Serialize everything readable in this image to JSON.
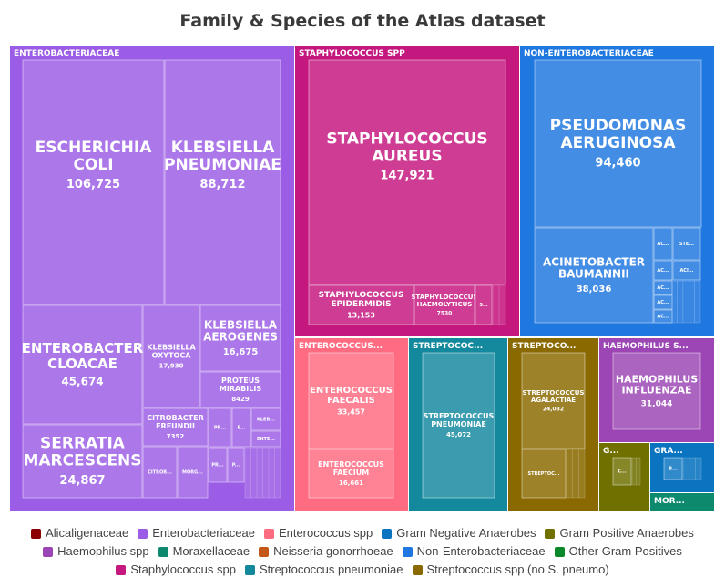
{
  "title": "Family & Species of the Atlas dataset",
  "chart_data": {
    "type": "treemap",
    "title": "Family & Species of the Atlas dataset",
    "groups": [
      {
        "name": "Enterobacteriaceae",
        "label": "ENTEROBACTERIACEAE",
        "color": "#9b5de5",
        "children": [
          {
            "name": "ESCHERICHIA COLI",
            "value": 106725,
            "value_label": "106,725"
          },
          {
            "name": "KLEBSIELLA PNEUMONIAE",
            "value": 88712,
            "value_label": "88,712"
          },
          {
            "name": "ENTEROBACTER CLOACAE",
            "value": 45674,
            "value_label": "45,674"
          },
          {
            "name": "SERRATIA MARCESCENS",
            "value": 24867,
            "value_label": "24,867"
          },
          {
            "name": "KLEBSIELLA OXYTOCA",
            "value": 17930,
            "value_label": "17,930"
          },
          {
            "name": "KLEBSIELLA AEROGENES",
            "value": 16675,
            "value_label": "16,675"
          },
          {
            "name": "PROTEUS MIRABILIS",
            "value": 8429,
            "value_label": "8429"
          },
          {
            "name": "CITROBACTER FREUNDII",
            "value": 7352,
            "value_label": "7352"
          },
          {
            "name": "CITROB...",
            "value": null,
            "value_label": ""
          },
          {
            "name": "MORG...",
            "value": null,
            "value_label": ""
          },
          {
            "name": "PR...",
            "value": null,
            "value_label": ""
          },
          {
            "name": "E...",
            "value": null,
            "value_label": ""
          },
          {
            "name": "KLEB...",
            "value": null,
            "value_label": ""
          },
          {
            "name": "ENTE...",
            "value": null,
            "value_label": ""
          },
          {
            "name": "PR...",
            "value": null,
            "value_label": ""
          },
          {
            "name": "P...",
            "value": null,
            "value_label": ""
          }
        ]
      },
      {
        "name": "Staphylococcus spp",
        "label": "STAPHYLOCOCCUS SPP",
        "color": "#c5187f",
        "children": [
          {
            "name": "STAPHYLOCOCCUS AUREUS",
            "value": 147921,
            "value_label": "147,921"
          },
          {
            "name": "STAPHYLOCOCCUS EPIDERMIDIS",
            "value": 13153,
            "value_label": "13,153"
          },
          {
            "name": "STAPHYLOCOCCUS HAEMOLYTICUS",
            "value": 7530,
            "value_label": "7530"
          },
          {
            "name": "S...",
            "value": null,
            "value_label": ""
          }
        ]
      },
      {
        "name": "Non-Enterobacteriaceae",
        "label": "NON-ENTEROBACTERIACEAE",
        "color": "#1f77e0",
        "children": [
          {
            "name": "PSEUDOMONAS AERUGINOSA",
            "value": 94460,
            "value_label": "94,460"
          },
          {
            "name": "ACINETOBACTER BAUMANNII",
            "value": 38036,
            "value_label": "38,036"
          },
          {
            "name": "AC...",
            "value": null,
            "value_label": ""
          },
          {
            "name": "STE...",
            "value": null,
            "value_label": ""
          },
          {
            "name": "AC...",
            "value": null,
            "value_label": ""
          },
          {
            "name": "ACI...",
            "value": null,
            "value_label": ""
          },
          {
            "name": "AC...",
            "value": null,
            "value_label": ""
          },
          {
            "name": "AC...",
            "value": null,
            "value_label": ""
          },
          {
            "name": "AC...",
            "value": null,
            "value_label": ""
          }
        ]
      },
      {
        "name": "Enterococcus spp",
        "label": "ENTEROCOCCUS...",
        "color": "#ff6b81",
        "children": [
          {
            "name": "ENTEROCOCCUS FAECALIS",
            "value": 33457,
            "value_label": "33,457"
          },
          {
            "name": "ENTEROCOCCUS FAECIUM",
            "value": 16661,
            "value_label": "16,661"
          }
        ]
      },
      {
        "name": "Streptococcus pneumoniae",
        "label": "STREPTOCOC...",
        "color": "#14899e",
        "children": [
          {
            "name": "STREPTOCOCCUS PNEUMONIAE",
            "value": 45072,
            "value_label": "45,072"
          }
        ]
      },
      {
        "name": "Streptococcus spp (no S. pneumo)",
        "label": "STREPTOCO...",
        "color": "#8a6a00",
        "children": [
          {
            "name": "STREPTOCOCCUS AGALACTIAE",
            "value": 24032,
            "value_label": "24,032"
          },
          {
            "name": "STREPTOC...",
            "value": null,
            "value_label": ""
          }
        ]
      },
      {
        "name": "Haemophilus spp",
        "label": "HAEMOPHILUS S...",
        "color": "#9c46b5",
        "children": [
          {
            "name": "HAEMOPHILUS INFLUENZAE",
            "value": 31044,
            "value_label": "31,044"
          }
        ]
      },
      {
        "name": "Gram Positive Anaerobes",
        "label": "G...",
        "color": "#6f7000",
        "children": [
          {
            "name": "C...",
            "value": null,
            "value_label": ""
          }
        ]
      },
      {
        "name": "Gram Negative Anaerobes",
        "label": "GRA...",
        "color": "#0a74c0",
        "children": [
          {
            "name": "B...",
            "value": null,
            "value_label": ""
          }
        ]
      },
      {
        "name": "Moraxellaceae",
        "label": "MOR...",
        "color": "#0d8a6e",
        "children": []
      }
    ],
    "legend": [
      {
        "name": "Alicaligenaceae",
        "color": "#8b0000"
      },
      {
        "name": "Enterobacteriaceae",
        "color": "#9b5de5"
      },
      {
        "name": "Enterococcus spp",
        "color": "#ff6b81"
      },
      {
        "name": "Gram Negative Anaerobes",
        "color": "#0a74c0"
      },
      {
        "name": "Gram Positive Anaerobes",
        "color": "#6f7000"
      },
      {
        "name": "Haemophilus spp",
        "color": "#9c46b5"
      },
      {
        "name": "Moraxellaceae",
        "color": "#0d8a6e"
      },
      {
        "name": "Neisseria gonorrhoeae",
        "color": "#c2571a"
      },
      {
        "name": "Non-Enterobacteriaceae",
        "color": "#1f77e0"
      },
      {
        "name": "Other Gram Positives",
        "color": "#0a8a2a"
      },
      {
        "name": "Staphylococcus spp",
        "color": "#c5187f"
      },
      {
        "name": "Streptococcus pneumoniae",
        "color": "#14899e"
      },
      {
        "name": "Streptococcus spp (no S. pneumo)",
        "color": "#8a6a00"
      }
    ],
    "legend_placement": "bottom"
  }
}
